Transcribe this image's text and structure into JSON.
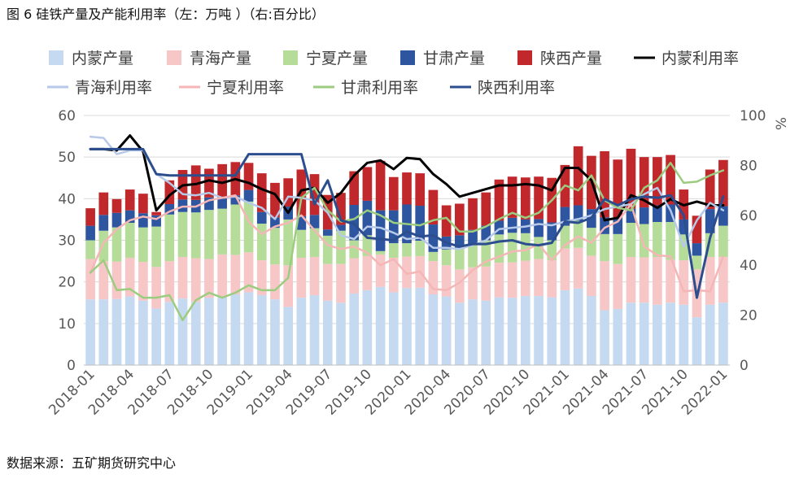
{
  "title": "图 6  硅铁产量及产能利用率（左：万吨 ）（右:百分比）",
  "source": "数据来源：五矿期货研究中心",
  "colors": {
    "nm_prod": "#c5d9f1",
    "qh_prod": "#f7c7c7",
    "nx_prod": "#b5dd99",
    "gs_prod": "#2e55a0",
    "sx_prod": "#c0282b",
    "nm_rate": "#000000",
    "qh_rate": "#b7c9e8",
    "nx_rate": "#f4b6b6",
    "gs_rate": "#9ccc7f",
    "sx_rate": "#2c4e8e"
  },
  "chart_data": {
    "type": "bar",
    "stacked": true,
    "categories": [
      "2018-01",
      "2018-02",
      "2018-03",
      "2018-04",
      "2018-05",
      "2018-06",
      "2018-07",
      "2018-08",
      "2018-09",
      "2018-10",
      "2018-11",
      "2018-12",
      "2019-01",
      "2019-02",
      "2019-03",
      "2019-04",
      "2019-05",
      "2019-06",
      "2019-07",
      "2019-08",
      "2019-09",
      "2019-10",
      "2019-11",
      "2019-12",
      "2020-01",
      "2020-02",
      "2020-03",
      "2020-04",
      "2020-05",
      "2020-06",
      "2020-07",
      "2020-08",
      "2020-09",
      "2020-10",
      "2020-11",
      "2020-12",
      "2021-01",
      "2021-02",
      "2021-03",
      "2021-04",
      "2021-05",
      "2021-06",
      "2021-07",
      "2021-08",
      "2021-09",
      "2021-10",
      "2021-11",
      "2021-12",
      "2022-01"
    ],
    "xtick_labels": [
      "2018-01",
      "2018-04",
      "2018-07",
      "2018-10",
      "2019-01",
      "2019-04",
      "2019-07",
      "2019-10",
      "2020-01",
      "2020-04",
      "2020-07",
      "2020-10",
      "2021-01",
      "2021-04",
      "2021-07",
      "2021-10",
      "2022-01"
    ],
    "y_left": {
      "min": 0,
      "max": 60,
      "ticks": [
        0,
        10,
        20,
        30,
        40,
        50,
        60
      ]
    },
    "y_right": {
      "min": 0,
      "max": 100,
      "ticks": [
        0,
        20,
        40,
        60,
        80,
        100
      ],
      "unit": "%"
    },
    "bar_series": [
      {
        "name": "内蒙产量",
        "color_key": "nm_prod",
        "values": [
          15.8,
          15.8,
          15.9,
          16.5,
          15.5,
          13.6,
          15.2,
          16.0,
          15.2,
          16.2,
          16.4,
          17.0,
          17.5,
          16.8,
          15.8,
          14.0,
          16.2,
          16.8,
          15.5,
          15.0,
          17.2,
          18.0,
          18.8,
          17.5,
          18.5,
          18.6,
          17.0,
          16.5,
          15.0,
          15.8,
          15.5,
          16.3,
          16.2,
          16.6,
          16.6,
          16.3,
          18.0,
          18.4,
          16.6,
          13.2,
          13.5,
          15.0,
          15.0,
          14.5,
          15.0,
          14.5,
          11.5,
          14.5,
          15.0
        ]
      },
      {
        "name": "青海产量",
        "color_key": "qh_prod",
        "values": [
          9.7,
          9.2,
          9.0,
          9.3,
          9.3,
          10.0,
          9.8,
          10.0,
          10.5,
          9.3,
          10.2,
          9.5,
          9.6,
          8.4,
          8.4,
          10.0,
          9.6,
          9.2,
          8.8,
          9.3,
          8.5,
          8.2,
          7.8,
          8.3,
          7.6,
          7.6,
          8.0,
          7.5,
          8.0,
          7.7,
          8.2,
          8.3,
          8.5,
          8.5,
          8.9,
          8.9,
          10.0,
          9.8,
          9.7,
          11.8,
          10.8,
          11.0,
          10.9,
          11.5,
          10.3,
          10.7,
          11.5,
          11.5,
          11.0
        ]
      },
      {
        "name": "宁夏产量",
        "color_key": "nx_prod",
        "values": [
          4.5,
          7.3,
          8.2,
          8.4,
          8.3,
          9.7,
          11.2,
          10.8,
          11.0,
          11.8,
          11.0,
          12.1,
          12.2,
          8.8,
          8.8,
          11.0,
          6.7,
          6.9,
          6.8,
          8.0,
          4.3,
          5.0,
          0.8,
          3.5,
          3.2,
          3.7,
          2.2,
          3.8,
          5.0,
          5.5,
          6.3,
          6.8,
          7.1,
          6.6,
          5.3,
          4.8,
          5.5,
          6.5,
          6.7,
          6.5,
          7.2,
          8.2,
          8.0,
          8.4,
          9.1,
          6.2,
          3.3,
          5.7,
          7.5
        ]
      },
      {
        "name": "甘肃产量",
        "color_key": "gs_prod",
        "values": [
          3.5,
          3.8,
          3.5,
          3.0,
          3.4,
          2.7,
          2.5,
          3.0,
          3.0,
          3.0,
          2.5,
          2.2,
          2.8,
          2.8,
          2.5,
          3.1,
          3.3,
          3.2,
          1.5,
          1.4,
          8.5,
          8.3,
          9.8,
          7.9,
          9.3,
          8.4,
          6.6,
          3.1,
          3.2,
          3.5,
          3.5,
          3.3,
          3.6,
          3.3,
          4.3,
          4.3,
          4.5,
          3.7,
          4.5,
          4.0,
          4.0,
          3.4,
          4.0,
          4.0,
          4.2,
          3.6,
          3.0,
          5.8,
          4.7
        ]
      },
      {
        "name": "陕西产量",
        "color_key": "sx_prod",
        "values": [
          4.2,
          5.4,
          3.3,
          5.0,
          4.7,
          0.8,
          5.7,
          7.1,
          8.3,
          6.9,
          8.2,
          8.0,
          6.5,
          9.3,
          8.3,
          6.8,
          11.2,
          9.8,
          8.3,
          7.7,
          8.1,
          8.1,
          11.9,
          8.0,
          7.7,
          7.8,
          8.3,
          7.5,
          7.6,
          7.6,
          8.0,
          9.9,
          9.9,
          10.1,
          10.2,
          10.7,
          10.1,
          14.2,
          12.8,
          15.9,
          13.9,
          14.4,
          12.1,
          11.6,
          11.9,
          7.2,
          6.6,
          9.5,
          11.1
        ]
      }
    ],
    "line_series": [
      {
        "name": "内蒙利用率",
        "color_key": "nm_rate",
        "width": 3,
        "values": [
          86.5,
          86.5,
          86.0,
          92.0,
          85.5,
          62.0,
          68.0,
          72.0,
          72.5,
          74.0,
          73.0,
          74.5,
          73.0,
          70.5,
          68.5,
          61.0,
          70.0,
          71.0,
          65.0,
          69.0,
          76.0,
          81.0,
          82.0,
          78.5,
          83.0,
          82.5,
          76.5,
          72.5,
          67.5,
          69.0,
          70.5,
          72.0,
          72.0,
          72.5,
          72.0,
          70.0,
          79.0,
          79.0,
          74.0,
          58.0,
          59.0,
          68.0,
          66.0,
          63.0,
          66.5,
          64.0,
          65.5,
          64.0,
          64.0
        ]
      },
      {
        "name": "青海利用率",
        "color_key": "qh_rate",
        "width": 2.5,
        "values": [
          91.5,
          91.0,
          84.5,
          86.0,
          86.0,
          76.5,
          73.0,
          68.5,
          68.0,
          69.0,
          67.0,
          67.5,
          65.0,
          63.0,
          58.5,
          67.5,
          67.0,
          66.0,
          61.0,
          52.0,
          50.5,
          55.5,
          55.0,
          53.0,
          50.5,
          51.0,
          47.0,
          47.0,
          46.5,
          48.0,
          50.0,
          54.5,
          55.0,
          55.5,
          56.5,
          56.0,
          57.5,
          58.5,
          60.0,
          62.5,
          63.5,
          64.5,
          68.5,
          71.0,
          62.0,
          47.5,
          58.0,
          65.0,
          62.0
        ]
      },
      {
        "name": "宁夏利用率",
        "color_key": "nx_rate",
        "width": 2.5,
        "values": [
          37.0,
          49.0,
          54.5,
          58.0,
          59.5,
          58.5,
          61.5,
          63.5,
          63.5,
          66.0,
          67.0,
          68.0,
          57.5,
          52.5,
          55.5,
          57.0,
          60.0,
          54.0,
          48.0,
          46.5,
          47.5,
          45.0,
          40.0,
          42.5,
          36.5,
          37.5,
          30.5,
          30.0,
          33.0,
          38.0,
          41.5,
          43.5,
          45.5,
          46.0,
          48.5,
          42.0,
          48.0,
          51.5,
          49.0,
          55.0,
          57.5,
          64.5,
          47.5,
          44.0,
          43.5,
          29.5,
          30.0,
          29.5,
          43.5
        ]
      },
      {
        "name": "甘肃利用率",
        "color_key": "gs_rate",
        "width": 2.5,
        "values": [
          37.0,
          42.0,
          30.0,
          30.5,
          27.0,
          27.0,
          28.0,
          18.0,
          26.0,
          29.0,
          27.0,
          29.0,
          32.0,
          30.0,
          30.0,
          35.0,
          67.0,
          71.0,
          62.0,
          57.5,
          58.5,
          62.0,
          60.0,
          57.0,
          56.5,
          56.0,
          58.0,
          59.0,
          53.5,
          53.5,
          55.5,
          58.5,
          61.0,
          59.0,
          61.0,
          66.0,
          72.0,
          70.0,
          76.0,
          66.0,
          63.0,
          62.0,
          71.0,
          74.0,
          81.0,
          73.0,
          73.5,
          76.0,
          78.0
        ]
      },
      {
        "name": "陕西利用率",
        "color_key": "sx_rate",
        "width": 3,
        "values": [
          86.5,
          86.5,
          86.5,
          86.5,
          86.5,
          76.5,
          76.0,
          76.0,
          76.0,
          76.0,
          76.0,
          76.0,
          84.5,
          84.5,
          84.5,
          84.5,
          84.5,
          64.5,
          74.0,
          58.0,
          56.5,
          51.0,
          50.5,
          50.0,
          53.5,
          51.5,
          52.0,
          49.0,
          47.5,
          48.5,
          48.5,
          49.5,
          50.0,
          48.5,
          48.0,
          49.0,
          57.5,
          57.0,
          59.0,
          66.5,
          64.0,
          66.5,
          67.5,
          67.0,
          68.0,
          60.0,
          27.0,
          51.0,
          67.5
        ]
      }
    ],
    "legend": {
      "placement": "top"
    }
  }
}
